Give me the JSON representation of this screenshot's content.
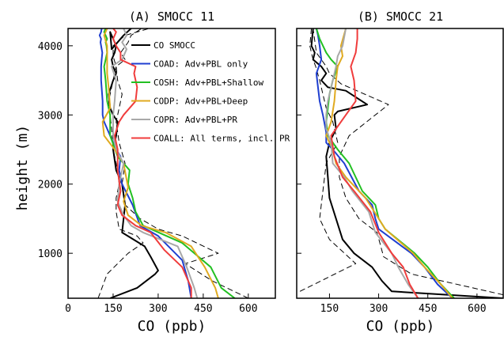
{
  "chart_data": {
    "type": "line",
    "ylabel": "height (m)",
    "series_styles": [
      {
        "key": "obs",
        "color": "#000000",
        "dash": "",
        "width": 2
      },
      {
        "key": "obs_lo",
        "color": "#000000",
        "dash": "7,4",
        "width": 1
      },
      {
        "key": "obs_hi",
        "color": "#000000",
        "dash": "7,4",
        "width": 1
      },
      {
        "key": "coad",
        "color": "#1f3fd0",
        "dash": "",
        "width": 2
      },
      {
        "key": "cosh",
        "color": "#22c022",
        "dash": "",
        "width": 2
      },
      {
        "key": "codp",
        "color": "#e0aa20",
        "dash": "",
        "width": 2
      },
      {
        "key": "copr",
        "color": "#a8a8a8",
        "dash": "",
        "width": 2
      },
      {
        "key": "coall",
        "color": "#f03c3c",
        "dash": "",
        "width": 2
      }
    ],
    "legend": [
      {
        "key": "obs",
        "label": "CO SMOCC"
      },
      {
        "key": "coad",
        "label": "COAD: Adv+PBL only"
      },
      {
        "key": "cosh",
        "label": "COSH: Adv+PBL+Shallow"
      },
      {
        "key": "codp",
        "label": "CODP: Adv+PBL+Deep"
      },
      {
        "key": "copr",
        "label": "COPR: Adv+PBL+PR"
      },
      {
        "key": "coall",
        "label": "COALL: All terms, incl. PR"
      }
    ],
    "legend_position": "top-right of panel A",
    "panels": [
      {
        "title": "(A) SMOCC 11",
        "xlabel": "CO (ppb)",
        "xlim": [
          0,
          690
        ],
        "ylim": [
          350,
          4250
        ],
        "xticks": [
          0,
          150,
          300,
          450,
          600
        ],
        "yticks": [
          1000,
          2000,
          3000,
          4000
        ],
        "show_ytick_labels": true,
        "series": [
          {
            "key": "obs",
            "x": [
              140,
              230,
              290,
              300,
              275,
              255,
              180,
              185,
              190,
              180,
              160,
              150,
              160,
              165,
              150,
              140,
              135,
              150,
              160,
              150,
              145,
              155,
              160,
              150,
              140,
              145,
              185,
              210
            ],
            "y": [
              350,
              500,
              700,
              750,
              950,
              1100,
              1300,
              1500,
              1700,
              2000,
              2200,
              2500,
              2700,
              2900,
              3000,
              3100,
              3300,
              3500,
              3600,
              3700,
              3800,
              3900,
              4000,
              4100,
              4200,
              3950,
              4150,
              4250
            ]
          },
          {
            "key": "obs_lo",
            "x": [
              100,
              130,
              200,
              250,
              230,
              170,
              160,
              160,
              170,
              165,
              150,
              145,
              140,
              135,
              150,
              160,
              150,
              150,
              190,
              270
            ],
            "y": [
              350,
              700,
              1000,
              1150,
              1250,
              1350,
              1600,
              1800,
              2000,
              2200,
              2500,
              2800,
              3000,
              3200,
              3500,
              3700,
              3850,
              4000,
              4150,
              4250
            ]
          },
          {
            "key": "obs_hi",
            "x": [
              600,
              480,
              390,
              500,
              380,
              300,
              240,
              190,
              180,
              190,
              170,
              160,
              170,
              180,
              165,
              160,
              190,
              175,
              200,
              210,
              245
            ],
            "y": [
              350,
              600,
              850,
              1000,
              1250,
              1350,
              1500,
              1700,
              2000,
              2300,
              2600,
              2900,
              3100,
              3300,
              3500,
              3700,
              3800,
              3900,
              4050,
              4150,
              4250
            ]
          },
          {
            "key": "coad",
            "x": [
              410,
              400,
              380,
              300,
              240,
              215,
              180,
              170,
              175,
              160,
              140,
              120,
              115,
              115,
              110,
              110,
              112,
              114,
              110,
              108,
              110,
              105,
              110,
              112
            ],
            "y": [
              350,
              600,
              900,
              1250,
              1400,
              1700,
              2000,
              2200,
              2400,
              2500,
              2700,
              2900,
              3000,
              3200,
              3500,
              3700,
              3800,
              3900,
              4000,
              4050,
              4100,
              4150,
              4200,
              4250
            ]
          },
          {
            "key": "cosh",
            "x": [
              555,
              510,
              475,
              380,
              250,
              225,
              215,
              200,
              205,
              165,
              140,
              140,
              130,
              125,
              120,
              125,
              130,
              128,
              125,
              130,
              120,
              125
            ],
            "y": [
              350,
              500,
              800,
              1150,
              1400,
              1600,
              1800,
              2000,
              2200,
              2400,
              2700,
              3000,
              3200,
              3500,
              3700,
              3800,
              3900,
              4000,
              4050,
              4100,
              4200,
              4250
            ]
          },
          {
            "key": "codp",
            "x": [
              500,
              490,
              455,
              410,
              325,
              245,
              200,
              185,
              200,
              185,
              155,
              120,
              115,
              140,
              135,
              130,
              130,
              130,
              120,
              130
            ],
            "y": [
              350,
              500,
              800,
              1100,
              1300,
              1400,
              1550,
              1750,
              1950,
              2300,
              2500,
              2700,
              2900,
              3100,
              3400,
              3600,
              3800,
              4000,
              4150,
              4250
            ]
          },
          {
            "key": "copr",
            "x": [
              430,
              420,
              395,
              365,
              250,
              210,
              185,
              165,
              170,
              185,
              160,
              150,
              150,
              155,
              160,
              145,
              180,
              195,
              180,
              195,
              185
            ],
            "y": [
              350,
              500,
              800,
              1100,
              1300,
              1400,
              1550,
              1750,
              2000,
              2300,
              2500,
              2700,
              3000,
              3200,
              3500,
              3700,
              3800,
              3950,
              4050,
              4150,
              4250
            ]
          },
          {
            "key": "coall",
            "x": [
              410,
              410,
              380,
              320,
              275,
              225,
              180,
              165,
              175,
              165,
              165,
              155,
              170,
              185,
              225,
              230,
              220,
              225,
              175,
              175,
              160,
              150,
              160,
              150
            ],
            "y": [
              350,
              500,
              800,
              1050,
              1300,
              1400,
              1550,
              1700,
              1900,
              2200,
              2500,
              2700,
              2900,
              3000,
              3200,
              3400,
              3600,
              3700,
              3800,
              3900,
              4000,
              4100,
              4200,
              4250
            ]
          }
        ]
      },
      {
        "title": "(B) SMOCC 21",
        "xlabel": "CO (ppb)",
        "xlim": [
          50,
          680
        ],
        "ylim": [
          350,
          4250
        ],
        "xticks": [
          150,
          300,
          450,
          600
        ],
        "yticks": [
          1000,
          2000,
          3000,
          4000
        ],
        "show_ytick_labels": false,
        "series": [
          {
            "key": "obs",
            "x": [
              680,
              340,
              310,
              280,
              225,
              190,
              170,
              150,
              145,
              140,
              150,
              170,
              165,
              175,
              265,
              200,
              145,
              125,
              140,
              125,
              100,
              105,
              95,
              100
            ],
            "y": [
              350,
              450,
              600,
              800,
              1000,
              1200,
              1500,
              1800,
              2100,
              2400,
              2600,
              2800,
              3000,
              3050,
              3150,
              3350,
              3400,
              3500,
              3600,
              3700,
              3800,
              3900,
              4000,
              4250
            ]
          },
          {
            "key": "obs_lo",
            "x": [
              60,
              230,
              150,
              120,
              130,
              140,
              175,
              160,
              140,
              130,
              120,
              108,
              100,
              95,
              90,
              95
            ],
            "y": [
              450,
              850,
              1200,
              1500,
              1900,
              2300,
              2600,
              2900,
              3100,
              3300,
              3500,
              3700,
              3800,
              3900,
              4000,
              4250
            ]
          },
          {
            "key": "obs_hi",
            "x": [
              680,
              400,
              315,
              295,
              240,
              200,
              180,
              180,
              210,
              330,
              185,
              150,
              140,
              125,
              110,
              100
            ],
            "y": [
              400,
              700,
              950,
              1300,
              1500,
              1800,
              2100,
              2400,
              2700,
              3150,
              3450,
              3600,
              3700,
              3800,
              3900,
              4250
            ]
          },
          {
            "key": "coad",
            "x": [
              525,
              480,
              440,
              400,
              300,
              290,
              280,
              240,
              195,
              160,
              140,
              140,
              130,
              120,
              115,
              110,
              125,
              120,
              115,
              110
            ],
            "y": [
              350,
              550,
              800,
              1000,
              1350,
              1500,
              1700,
              1900,
              2300,
              2500,
              2600,
              2750,
              3000,
              3200,
              3400,
              3600,
              3800,
              4000,
              4150,
              4250
            ]
          },
          {
            "key": "cosh",
            "x": [
              530,
              490,
              450,
              410,
              320,
              300,
              290,
              250,
              210,
              175,
              145,
              140,
              145,
              150,
              160,
              175,
              155,
              140,
              120,
              110
            ],
            "y": [
              350,
              550,
              800,
              1000,
              1350,
              1500,
              1700,
              1900,
              2300,
              2500,
              2700,
              2900,
              3100,
              3300,
              3500,
              3700,
              3800,
              3900,
              4100,
              4250
            ]
          },
          {
            "key": "codp",
            "x": [
              525,
              490,
              440,
              405,
              320,
              300,
              260,
              200,
              170,
              160,
              140,
              155,
              165,
              170,
              175,
              190,
              185,
              200
            ],
            "y": [
              350,
              550,
              800,
              1000,
              1350,
              1500,
              1800,
              2100,
              2300,
              2500,
              2700,
              2900,
              3200,
              3500,
              3700,
              3850,
              4000,
              4250
            ]
          },
          {
            "key": "copr",
            "x": [
              420,
              390,
              360,
              340,
              290,
              270,
              220,
              195,
              160,
              155,
              140,
              140,
              145,
              160,
              170,
              175,
              190,
              200
            ],
            "y": [
              350,
              550,
              800,
              1000,
              1300,
              1600,
              1900,
              2100,
              2300,
              2600,
              2800,
              3000,
              3200,
              3500,
              3700,
              3850,
              4000,
              4250
            ]
          },
          {
            "key": "coall",
            "x": [
              420,
              395,
              375,
              340,
              300,
              275,
              225,
              190,
              165,
              155,
              200,
              230,
              225,
              215,
              230,
              235,
              235
            ],
            "y": [
              350,
              550,
              800,
              1000,
              1300,
              1600,
              1900,
              2100,
              2400,
              2700,
              3000,
              3200,
              3500,
              3700,
              3900,
              4100,
              4250
            ]
          }
        ]
      }
    ]
  }
}
